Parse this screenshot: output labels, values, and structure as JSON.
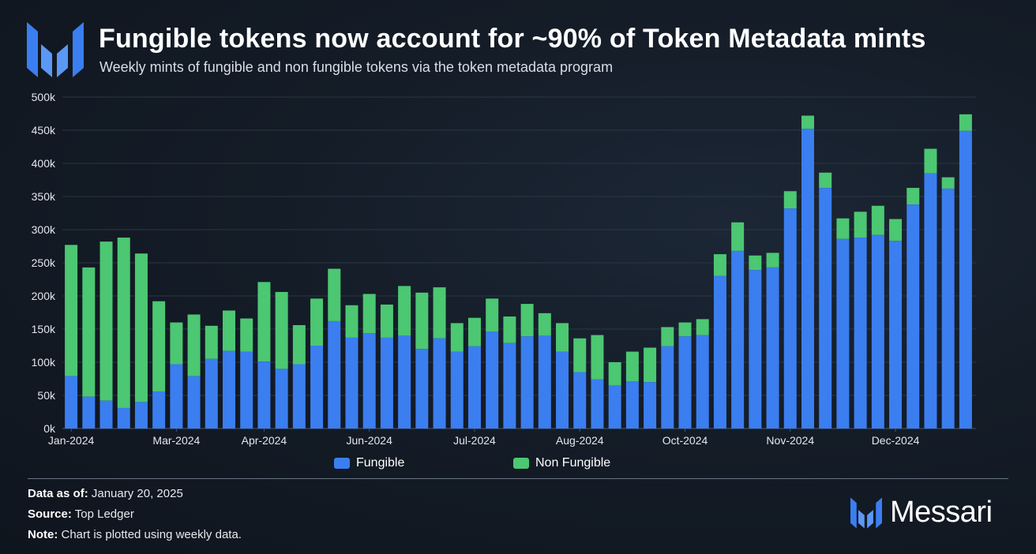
{
  "header": {
    "title": "Fungible tokens now account for ~90% of Token Metadata mints",
    "subtitle": "Weekly mints of fungible and non fungible tokens via the token metadata program"
  },
  "colors": {
    "fungible": "#3b7ef0",
    "non_fungible": "#4cc772",
    "grid": "#2c3544",
    "axis": "#4a5566"
  },
  "chart_data": {
    "type": "bar",
    "stacked": true,
    "ylim": [
      0,
      500000
    ],
    "y_ticks": [
      "0k",
      "50k",
      "100k",
      "150k",
      "200k",
      "250k",
      "300k",
      "350k",
      "400k",
      "450k",
      "500k"
    ],
    "x_tick_labels": [
      {
        "label": "Jan-2024",
        "index": 0
      },
      {
        "label": "Mar-2024",
        "index": 6
      },
      {
        "label": "Apr-2024",
        "index": 11
      },
      {
        "label": "Jun-2024",
        "index": 17
      },
      {
        "label": "Jul-2024",
        "index": 23
      },
      {
        "label": "Aug-2024",
        "index": 29
      },
      {
        "label": "Oct-2024",
        "index": 35
      },
      {
        "label": "Nov-2024",
        "index": 41
      },
      {
        "label": "Dec-2024",
        "index": 47
      }
    ],
    "legend_position": "bottom",
    "series": [
      {
        "name": "Fungible",
        "values": [
          79000,
          48000,
          42000,
          31000,
          40000,
          56000,
          97000,
          79000,
          105000,
          117000,
          116000,
          101000,
          90000,
          97000,
          125000,
          162000,
          137000,
          144000,
          137000,
          140000,
          120000,
          136000,
          116000,
          124000,
          146000,
          129000,
          139000,
          140000,
          116000,
          85000,
          74000,
          65000,
          71000,
          70000,
          124000,
          139000,
          141000,
          230000,
          268000,
          239000,
          243000,
          332000,
          452000,
          363000,
          286000,
          288000,
          292000,
          283000,
          338000,
          385000,
          362000,
          449000
        ]
      },
      {
        "name": "Non Fungible",
        "values": [
          198000,
          195000,
          240000,
          257000,
          224000,
          136000,
          63000,
          93000,
          50000,
          61000,
          50000,
          120000,
          116000,
          59000,
          71000,
          79000,
          49000,
          59000,
          50000,
          75000,
          85000,
          77000,
          43000,
          43000,
          50000,
          40000,
          49000,
          34000,
          43000,
          51000,
          67000,
          35000,
          45000,
          52000,
          29000,
          21000,
          24000,
          33000,
          43000,
          22000,
          22000,
          26000,
          20000,
          23000,
          31000,
          39000,
          44000,
          33000,
          25000,
          37000,
          17000,
          25000
        ]
      }
    ]
  },
  "footer": {
    "data_as_of_label": "Data as of:",
    "data_as_of_value": "January 20, 2025",
    "source_label": "Source:",
    "source_value": "Top Ledger",
    "note_label": "Note:",
    "note_value": "Chart is plotted using weekly data."
  },
  "brand": {
    "name": "Messari"
  }
}
